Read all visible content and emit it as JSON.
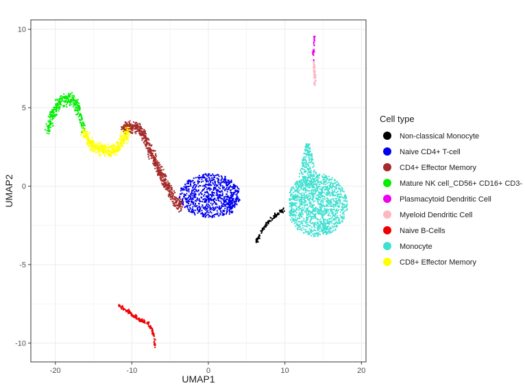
{
  "chart_data": {
    "type": "scatter",
    "xlabel": "UMAP1",
    "ylabel": "UMAP2",
    "xlim": [
      -23.2,
      20.6
    ],
    "ylim": [
      -11.2,
      10.6
    ],
    "x_ticks": [
      -20,
      -10,
      0,
      10,
      20
    ],
    "y_ticks": [
      -10,
      -5,
      0,
      5,
      10
    ],
    "grid": true,
    "legend_title": "Cell type",
    "legend_position": "right",
    "series": [
      {
        "name": "Non-classical Monocyte",
        "color": "#000000",
        "shape": "line",
        "path": [
          [
            6.3,
            -3.5
          ],
          [
            7.2,
            -2.7
          ],
          [
            8.2,
            -2.1
          ],
          [
            9.2,
            -1.7
          ],
          [
            9.9,
            -1.5
          ]
        ],
        "n": 120
      },
      {
        "name": "Naive CD4+ T-cell",
        "color": "#0000ee",
        "shape": "ellipse",
        "center": [
          0.2,
          -0.6
        ],
        "radii": [
          4.0,
          1.4
        ],
        "n": 800
      },
      {
        "name": "CD4+ Effector Memory",
        "color": "#a52a2a",
        "shape": "line",
        "path": [
          [
            -11.2,
            3.6
          ],
          [
            -9.5,
            3.8
          ],
          [
            -8.3,
            3.2
          ],
          [
            -7.2,
            1.8
          ],
          [
            -6.0,
            0.6
          ],
          [
            -5.0,
            -0.3
          ],
          [
            -4.2,
            -1.0
          ],
          [
            -3.5,
            -1.3
          ]
        ],
        "n": 700
      },
      {
        "name": "Mature NK cell_CD56+ CD16+ CD3-",
        "color": "#00ee00",
        "shape": "line",
        "path": [
          [
            -21,
            3.5
          ],
          [
            -20.5,
            4.5
          ],
          [
            -19.5,
            5.3
          ],
          [
            -18.2,
            5.6
          ],
          [
            -17.3,
            5.3
          ],
          [
            -16.8,
            4.6
          ],
          [
            -16.3,
            3.6
          ]
        ],
        "n": 350
      },
      {
        "name": "Plasmacytoid Dendritic Cell",
        "color": "#ee00ee",
        "shape": "line",
        "path": [
          [
            13.8,
            9.35
          ],
          [
            13.9,
            9.55
          ],
          [
            13.7,
            8.1
          ],
          [
            13.8,
            8.0
          ]
        ],
        "n": 30
      },
      {
        "name": "Myeloid Dendritic Cell",
        "color": "#ffb6c1",
        "shape": "line",
        "path": [
          [
            13.8,
            7.9
          ],
          [
            13.9,
            7.2
          ],
          [
            13.9,
            6.4
          ]
        ],
        "n": 60
      },
      {
        "name": "Naive B-Cells",
        "color": "#ee0000",
        "shape": "line",
        "path": [
          [
            -11.7,
            -7.6
          ],
          [
            -10.5,
            -8.0
          ],
          [
            -9.0,
            -8.5
          ],
          [
            -7.9,
            -8.7
          ],
          [
            -7.3,
            -9.2
          ],
          [
            -7.0,
            -9.8
          ],
          [
            -7.0,
            -10.3
          ]
        ],
        "n": 160
      },
      {
        "name": "Monocyte",
        "color": "#40e0d0",
        "shape": "blob",
        "n": 1500
      },
      {
        "name": "CD8+ Effector Memory",
        "color": "#ffff00",
        "shape": "line",
        "path": [
          [
            -16.3,
            3.6
          ],
          [
            -15.5,
            2.7
          ],
          [
            -14.3,
            2.4
          ],
          [
            -13.0,
            2.2
          ],
          [
            -11.8,
            2.5
          ],
          [
            -10.9,
            3.2
          ],
          [
            -10.5,
            3.6
          ]
        ],
        "n": 450
      }
    ]
  }
}
